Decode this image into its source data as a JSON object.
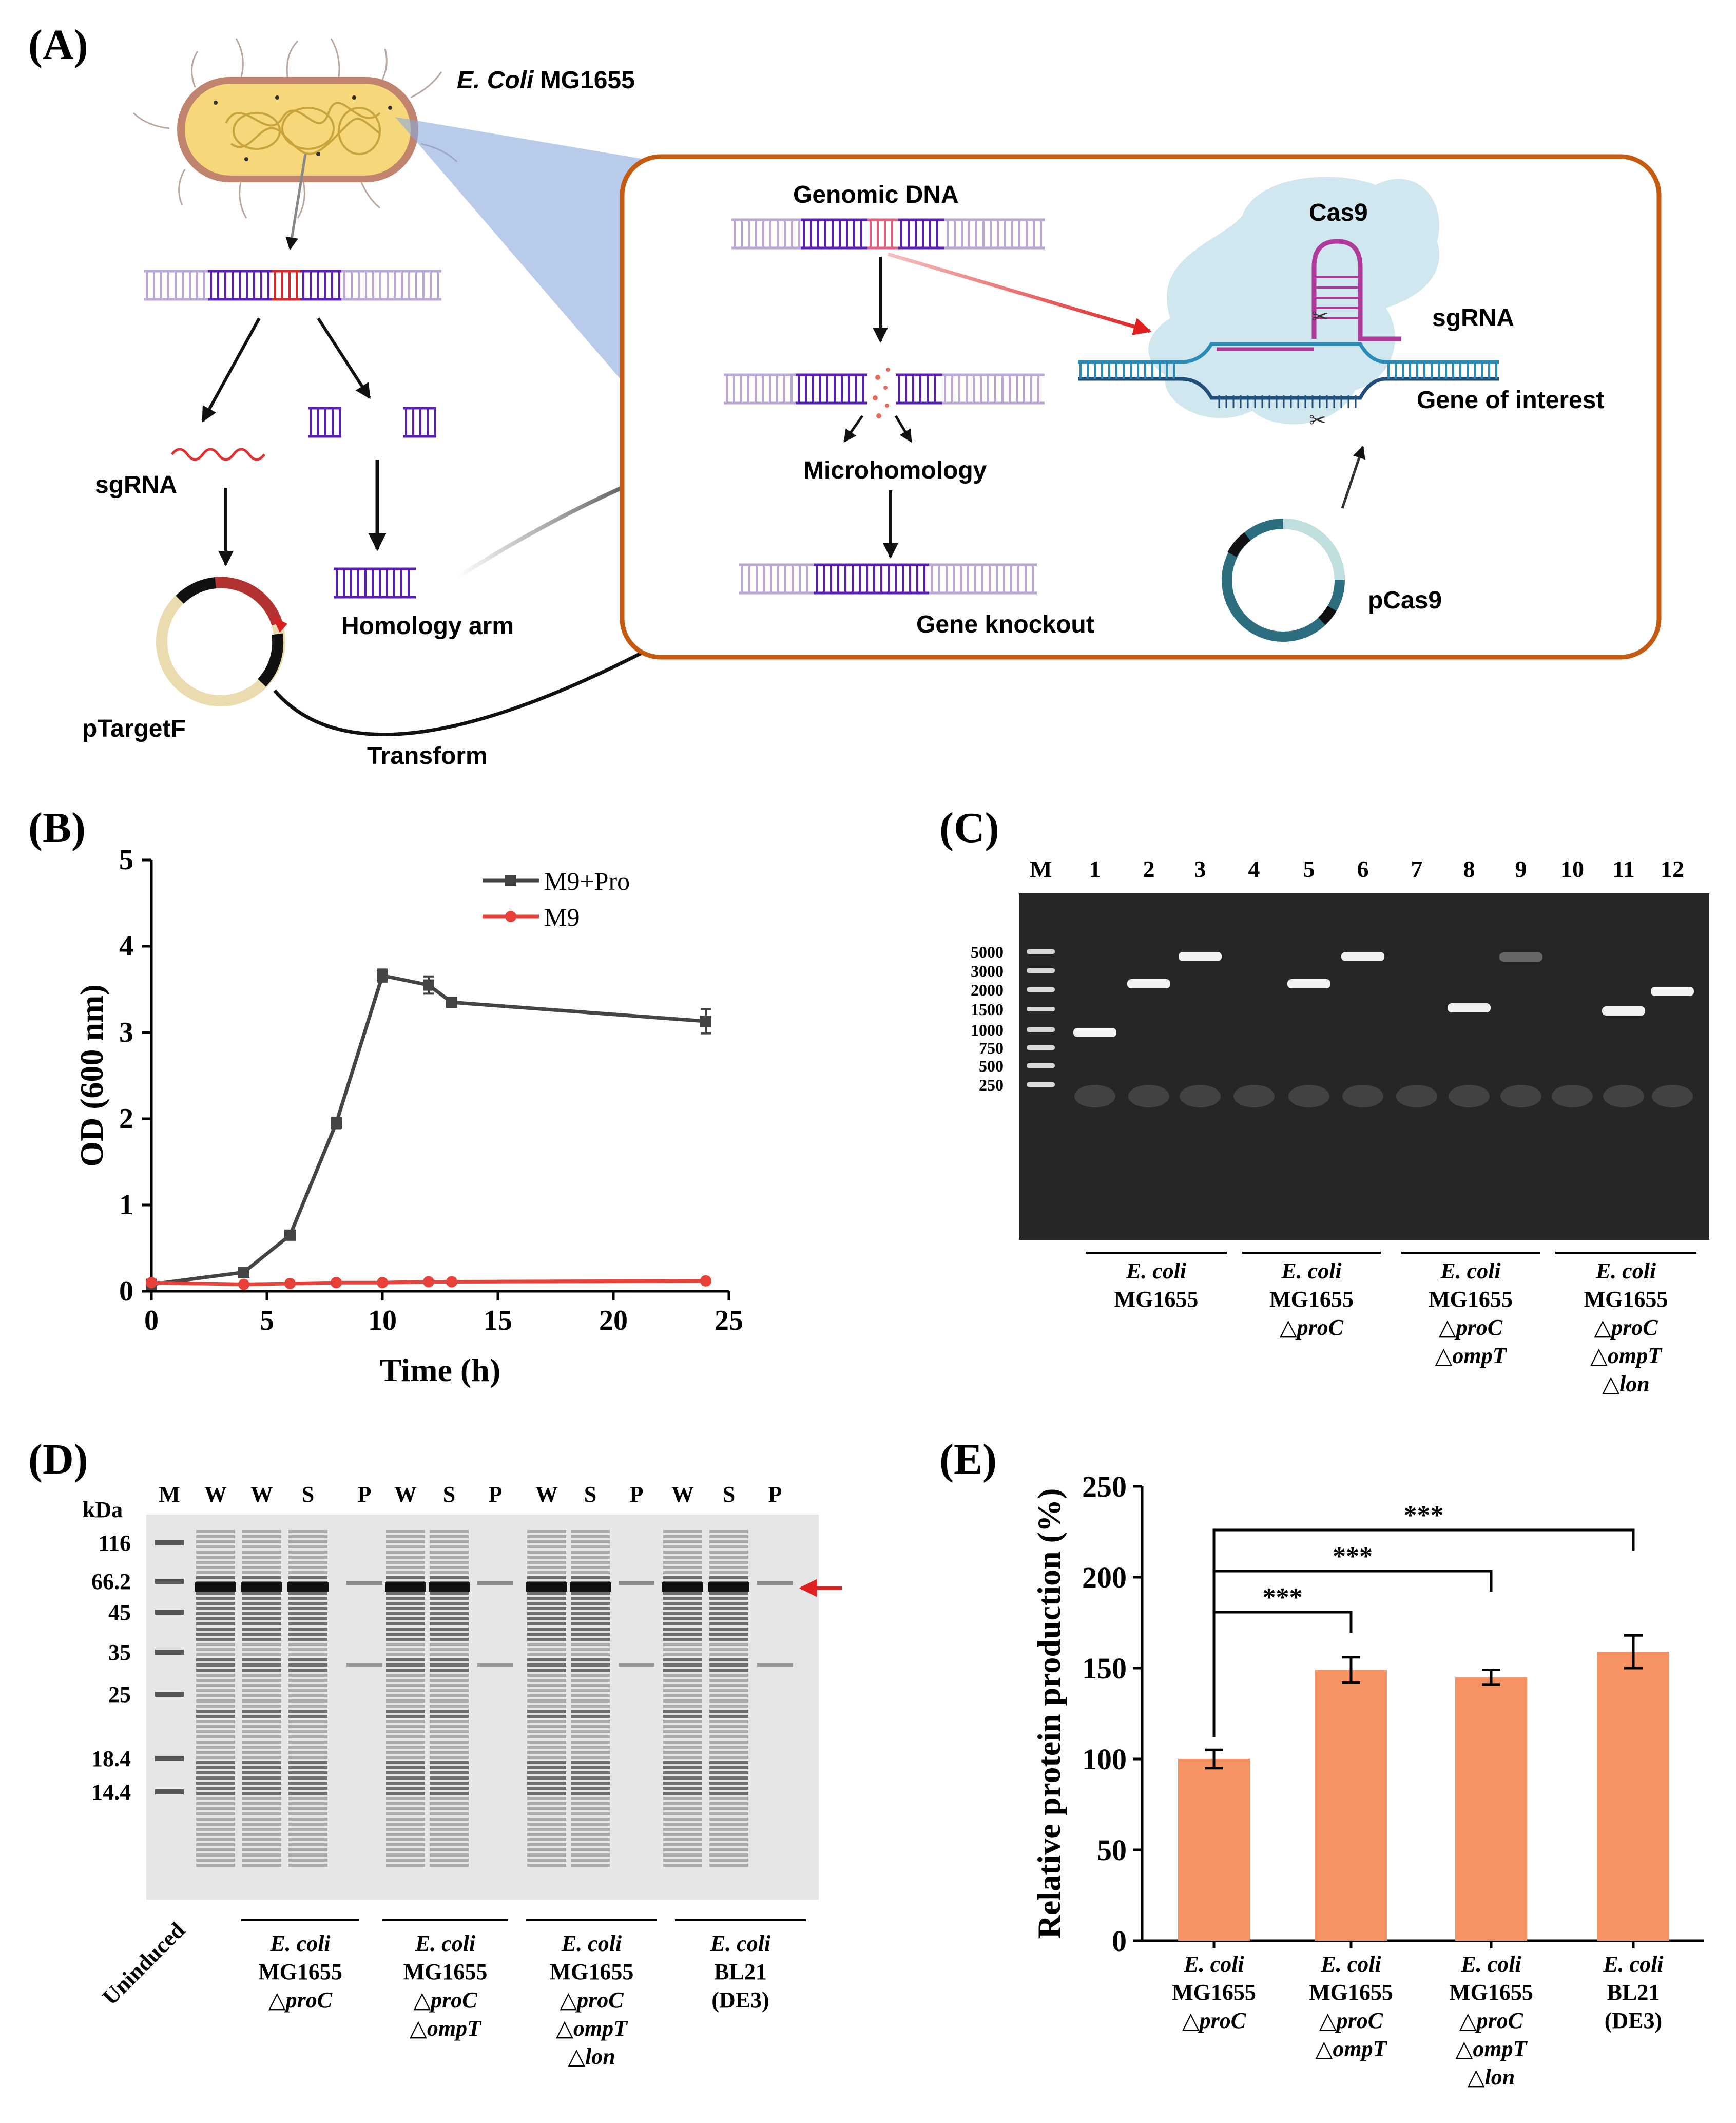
{
  "panel_labels": {
    "a": "(A)",
    "b": "(B)",
    "c": "(C)",
    "d": "(D)",
    "e": "(E)"
  },
  "panel_a": {
    "ecoli_italic": "E. Coli",
    "ecoli_strain": "MG1655",
    "sgrna": "sgRNA",
    "homology_arm": "Homology arm",
    "ptargetf": "pTargetF",
    "transform": "Transform",
    "genomic_dna": "Genomic DNA",
    "microhomology": "Microhomology",
    "gene_knockout": "Gene knockout",
    "cas9": "Cas9",
    "sgrna_inset": "sgRNA",
    "gene_of_interest": "Gene of interest",
    "pcas9": "pCas9",
    "colors": {
      "dna_light": "#b9a7d6",
      "dna_dark": "#5a1fb3",
      "red": "#d62828",
      "box_border": "#c55a11",
      "cas9_fill": "#cfe6ee",
      "cell_fill": "#f6d77a"
    }
  },
  "chart_b": {
    "type": "line",
    "xlabel": "Time (h)",
    "ylabel": "OD (600 nm)",
    "xlim": [
      0,
      25
    ],
    "ylim": [
      0,
      5
    ],
    "xticks": [
      0,
      5,
      10,
      15,
      20,
      25
    ],
    "yticks": [
      0,
      1,
      2,
      3,
      4,
      5
    ],
    "series": [
      {
        "name": "M9+Pro",
        "color": "#444444",
        "marker": "square",
        "x": [
          0,
          4,
          6,
          8,
          10,
          12,
          13,
          24
        ],
        "y": [
          0.08,
          0.22,
          0.65,
          1.95,
          3.66,
          3.55,
          3.35,
          3.13
        ],
        "err": [
          0.02,
          0.03,
          0.04,
          0.06,
          0.07,
          0.1,
          0.03,
          0.14
        ]
      },
      {
        "name": "M9",
        "color": "#e8413a",
        "marker": "circle",
        "x": [
          0,
          4,
          6,
          8,
          10,
          12,
          13,
          24
        ],
        "y": [
          0.1,
          0.08,
          0.09,
          0.1,
          0.1,
          0.11,
          0.11,
          0.12
        ],
        "err": [
          0,
          0,
          0,
          0,
          0,
          0,
          0,
          0
        ]
      }
    ]
  },
  "gel_c": {
    "lanes": [
      "M",
      "1",
      "2",
      "3",
      "4",
      "5",
      "6",
      "7",
      "8",
      "9",
      "10",
      "11",
      "12"
    ],
    "ladder": [
      "5000",
      "3000",
      "2000",
      "1500",
      "1000",
      "750",
      "500",
      "250"
    ],
    "groups": [
      {
        "name": "E. coli",
        "lines": [
          "MG1655"
        ]
      },
      {
        "name": "E. coli",
        "lines": [
          "MG1655",
          "△proC"
        ]
      },
      {
        "name": "E. coli",
        "lines": [
          "MG1655",
          "△proC",
          "△ompT"
        ]
      },
      {
        "name": "E. coli",
        "lines": [
          "MG1655",
          "△proC",
          "△ompT",
          "△lon"
        ]
      }
    ]
  },
  "gel_d": {
    "kda_label": "kDa",
    "markers": [
      "116",
      "66.2",
      "45",
      "35",
      "25",
      "18.4",
      "14.4"
    ],
    "lanes": [
      "M",
      "W",
      "W",
      "S",
      "P",
      "W",
      "S",
      "P",
      "W",
      "S",
      "P",
      "W",
      "S",
      "P"
    ],
    "uninduced": "Uninduced",
    "groups": [
      {
        "name": "E. coli",
        "lines": [
          "MG1655",
          "△proC"
        ]
      },
      {
        "name": "E. coli",
        "lines": [
          "MG1655",
          "△proC",
          "△ompT"
        ]
      },
      {
        "name": "E. coli",
        "lines": [
          "MG1655",
          "△proC",
          "△ompT",
          "△lon"
        ]
      },
      {
        "name": "E. coli",
        "lines": [
          "BL21",
          "(DE3)"
        ]
      }
    ]
  },
  "chart_e": {
    "type": "bar",
    "ylabel": "Relative protein production (%)",
    "ylim": [
      0,
      250
    ],
    "yticks": [
      0,
      50,
      100,
      150,
      200,
      250
    ],
    "bar_color": "#f79263",
    "categories": [
      {
        "lines": [
          "E. coli",
          "MG1655",
          "△proC"
        ]
      },
      {
        "lines": [
          "E. coli",
          "MG1655",
          "△proC",
          "△ompT"
        ]
      },
      {
        "lines": [
          "E. coli",
          "MG1655",
          "△proC",
          "△ompT",
          "△lon"
        ]
      },
      {
        "lines": [
          "E. coli",
          "BL21",
          "(DE3)"
        ]
      }
    ],
    "values": [
      100,
      149,
      145,
      159
    ],
    "errors": [
      5,
      7,
      4,
      9
    ],
    "significance": [
      {
        "from": 0,
        "to": 1,
        "label": "***"
      },
      {
        "from": 0,
        "to": 2,
        "label": "***"
      },
      {
        "from": 0,
        "to": 3,
        "label": "***"
      }
    ]
  }
}
